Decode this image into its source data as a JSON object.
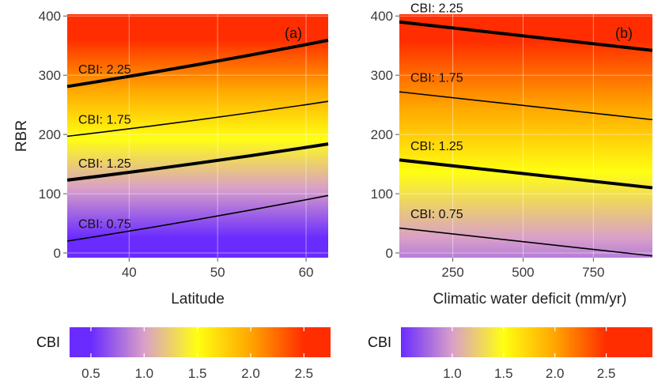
{
  "chart_data": [
    {
      "type": "heatmap",
      "panel_label": "(a)",
      "xlabel": "Latitude",
      "ylabel": "RBR",
      "xlim": [
        33,
        62.5
      ],
      "ylim": [
        -8,
        403
      ],
      "x_ticks": [
        40,
        50,
        60
      ],
      "y_ticks": [
        0,
        100,
        200,
        300,
        400
      ],
      "grid": true,
      "colorscale": "CBI",
      "contours": [
        {
          "label": "CBI: 0.75",
          "level": 0.75,
          "x": [
            33,
            62.5
          ],
          "y": [
            20,
            97
          ],
          "weight": "thin"
        },
        {
          "label": "CBI: 1.25",
          "level": 1.25,
          "x": [
            33,
            62.5
          ],
          "y": [
            123,
            184
          ],
          "weight": "thick"
        },
        {
          "label": "CBI: 1.75",
          "level": 1.75,
          "x": [
            33,
            62.5
          ],
          "y": [
            197,
            256
          ],
          "weight": "thin"
        },
        {
          "label": "CBI: 2.25",
          "level": 2.25,
          "x": [
            33,
            62.5
          ],
          "y": [
            281,
            359
          ],
          "weight": "thick"
        }
      ]
    },
    {
      "type": "heatmap",
      "panel_label": "(b)",
      "xlabel": "Climatic water deficit (mm/yr)",
      "ylabel": "",
      "xlim": [
        60,
        960
      ],
      "ylim": [
        -8,
        403
      ],
      "x_ticks": [
        250,
        500,
        750
      ],
      "y_ticks": [
        0,
        100,
        200,
        300,
        400
      ],
      "grid": true,
      "colorscale": "CBI",
      "contours": [
        {
          "label": "CBI: 0.75",
          "level": 0.75,
          "x": [
            60,
            960
          ],
          "y": [
            42,
            -5
          ],
          "weight": "thin"
        },
        {
          "label": "CBI: 1.25",
          "level": 1.25,
          "x": [
            60,
            960
          ],
          "y": [
            157,
            110
          ],
          "weight": "thick"
        },
        {
          "label": "CBI: 1.75",
          "level": 1.75,
          "x": [
            60,
            960
          ],
          "y": [
            272,
            225
          ],
          "weight": "thin"
        },
        {
          "label": "CBI: 2.25",
          "level": 2.25,
          "x": [
            60,
            960
          ],
          "y": [
            390,
            342
          ],
          "weight": "thick"
        }
      ]
    }
  ],
  "legends": [
    {
      "title": "CBI",
      "range": [
        0.3,
        2.75
      ],
      "ticks": [
        "0.5",
        "1.0",
        "1.5",
        "2.0",
        "2.5"
      ],
      "tick_values": [
        0.5,
        1.0,
        1.5,
        2.0,
        2.5
      ]
    },
    {
      "title": "CBI",
      "range": [
        0.5,
        2.95
      ],
      "ticks": [
        "1.0",
        "1.5",
        "2.0",
        "2.5"
      ],
      "tick_values": [
        1.0,
        1.5,
        2.0,
        2.5
      ]
    }
  ],
  "colors": {
    "cbi_0_5": "#6a2bff",
    "cbi_1_0": "#d9a0c8",
    "cbi_1_5": "#ffff12",
    "cbi_2_0": "#ffa500",
    "cbi_2_5": "#ff2d00",
    "grid": "#ffffff",
    "contour": "#000000"
  }
}
